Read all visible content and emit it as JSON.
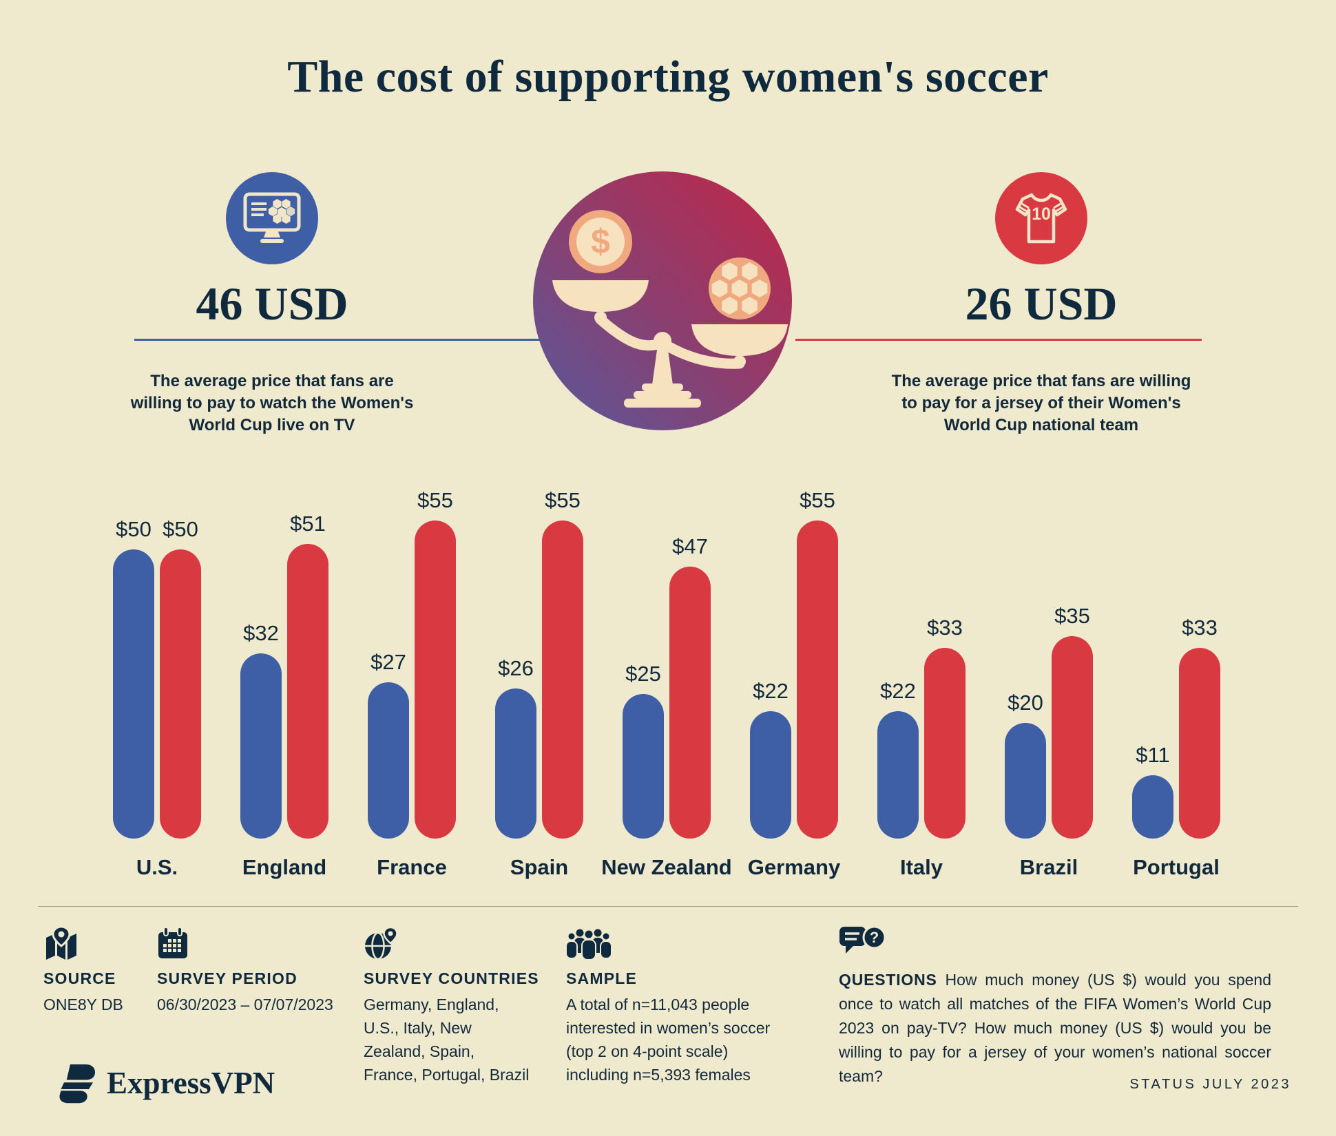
{
  "title": "The cost of supporting women's soccer",
  "stats": {
    "tv": {
      "value": "46 USD",
      "description": "The average price that fans are willing to pay to watch the Women's World Cup live on TV",
      "icon": "tv-soccer-icon",
      "accent_color": "#3e5ea5"
    },
    "jersey": {
      "value": "26 USD",
      "description": "The average price that fans are willing to pay for a jersey of their Women's World Cup national team",
      "icon": "jersey-icon",
      "icon_number": "10",
      "accent_color": "#d93a42"
    }
  },
  "center_illustration": {
    "icon": "balance-scale-icon",
    "coin_symbol": "$",
    "gradient": [
      "#c12647",
      "#565a9d"
    ]
  },
  "chart_data": {
    "type": "bar",
    "categories": [
      "U.S.",
      "England",
      "France",
      "Spain",
      "New Zealand",
      "Germany",
      "Italy",
      "Brazil",
      "Portugal"
    ],
    "series": [
      {
        "name": "tv",
        "color": "#3e5ea5",
        "values": [
          50,
          32,
          27,
          26,
          25,
          22,
          22,
          20,
          11
        ]
      },
      {
        "name": "jersey",
        "color": "#d93a42",
        "values": [
          50,
          51,
          55,
          55,
          47,
          55,
          33,
          35,
          33
        ]
      }
    ],
    "value_prefix": "$",
    "ylim": [
      0,
      55
    ],
    "grid": false,
    "legend_position": "none",
    "notes": "paired pill bars, value labeled above each bar, country label below each pair"
  },
  "footer": {
    "source": {
      "label": "SOURCE",
      "value": "ONE8Y DB",
      "icon": "map-pin-icon"
    },
    "survey_period": {
      "label": "SURVEY PERIOD",
      "value": "06/30/2023 – 07/07/2023",
      "icon": "calendar-icon"
    },
    "survey_countries": {
      "label": "SURVEY COUNTRIES",
      "value": "Germany, England, U.S., Italy, New Zealand, Spain, France, Portugal, Brazil",
      "icon": "globe-pin-icon"
    },
    "sample": {
      "label": "SAMPLE",
      "value": "A total of n=11,043 people interested in women’s soccer (top 2 on 4-point scale) including n=5,393 females",
      "icon": "people-icon"
    },
    "questions": {
      "label": "QUESTIONS",
      "value": "How much money (US $) would you spend once to watch all matches of the FIFA Women’s World Cup 2023 on pay-TV? How much money (US $) would you be willing to pay for a jersey of your women’s national soccer team?",
      "icon": "chat-question-icon",
      "icon_symbol": "?"
    }
  },
  "branding": {
    "logo_text": "ExpressVPN",
    "status_text": "STATUS JULY 2023"
  },
  "colors": {
    "background": "#efe9cd",
    "navy": "#0f2a3e",
    "blue": "#3e5ea5",
    "red": "#d93a42",
    "cream": "#f7e2c0",
    "salmon": "#f0a87e"
  }
}
